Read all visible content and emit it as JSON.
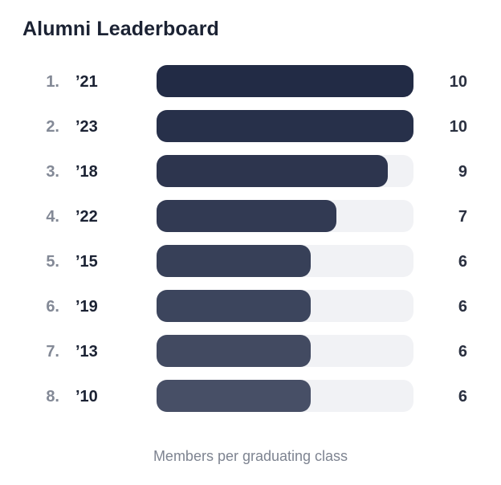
{
  "header": {
    "title": "Alumni Leaderboard"
  },
  "footer": {
    "caption": "Members per graduating class"
  },
  "chart_data": {
    "type": "bar",
    "orientation": "horizontal",
    "title": "Alumni Leaderboard",
    "caption": "Members per graduating class",
    "categories": [
      "’21",
      "’23",
      "’18",
      "’22",
      "’15",
      "’19",
      "’13",
      "’10"
    ],
    "ranks": [
      "1.",
      "2.",
      "3.",
      "4.",
      "5.",
      "6.",
      "7.",
      "8."
    ],
    "values": [
      10,
      10,
      9,
      7,
      6,
      6,
      6,
      6
    ],
    "xlim": [
      0,
      10
    ],
    "grid": false,
    "legend": "none",
    "colors": {
      "track": "#f1f2f5",
      "bar_start": "#222b45",
      "bar_end": "#474f66",
      "rank_text": "#838996",
      "label_text": "#1b2233",
      "value_text": "#2a3040"
    }
  }
}
